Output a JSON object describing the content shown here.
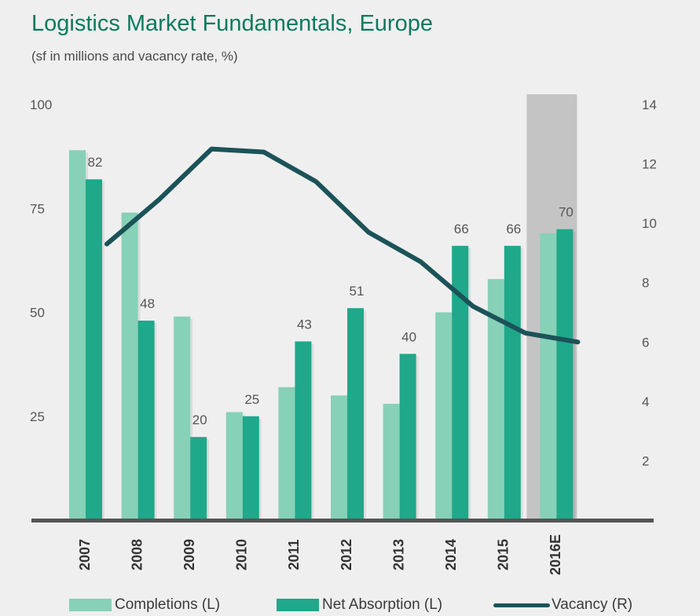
{
  "title": "Logistics Market Fundamentals, Europe",
  "subtitle": "(sf in millions and vacancy rate, %)",
  "colors": {
    "completions": "#86d1b7",
    "net_absorption": "#1fa88a",
    "vacancy": "#1b5358",
    "forecast_band": "#c4c4c4",
    "axis": "#555555"
  },
  "legend": {
    "completions": "Completions (L)",
    "net_absorption": "Net Absorption (L)",
    "vacancy": "Vacancy (R)"
  },
  "chart_data": {
    "type": "bar",
    "categories": [
      "2007",
      "2008",
      "2009",
      "2010",
      "2011",
      "2012",
      "2013",
      "2014",
      "2015",
      "2016E"
    ],
    "series": [
      {
        "name": "Completions (L)",
        "axis": "left",
        "type": "bar",
        "values": [
          89,
          74,
          49,
          26,
          32,
          30,
          28,
          50,
          58,
          69
        ]
      },
      {
        "name": "Net Absorption (L)",
        "axis": "left",
        "type": "bar",
        "values": [
          82,
          48,
          20,
          25,
          43,
          51,
          40,
          66,
          66,
          70
        ],
        "data_labels": [
          "82",
          "48",
          "20",
          "25",
          "43",
          "51",
          "40",
          "66",
          "66",
          "70"
        ]
      },
      {
        "name": "Vacancy (R)",
        "axis": "right",
        "type": "line",
        "values": [
          9.3,
          10.8,
          12.5,
          12.4,
          11.4,
          9.7,
          8.7,
          7.2,
          6.3,
          6.0
        ]
      }
    ],
    "y_left": {
      "ticks": [
        "25",
        "50",
        "75",
        "100"
      ],
      "ylim": [
        0,
        100
      ]
    },
    "y_right": {
      "ticks": [
        "2",
        "4",
        "6",
        "8",
        "10",
        "12",
        "14"
      ],
      "ylim": [
        0,
        14
      ]
    },
    "forecast_category": "2016E",
    "grid": false,
    "legend_position": "bottom"
  }
}
